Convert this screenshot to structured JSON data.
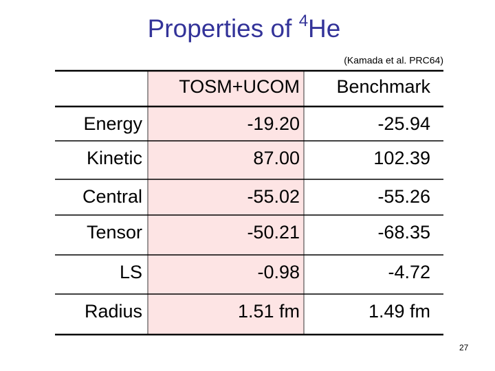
{
  "header": {
    "title": {
      "main": "Properties of ",
      "superscript": "4",
      "element": "He"
    },
    "citation": "(Kamada et al. PRC64)"
  },
  "table": {
    "columns": [
      "TOSM+UCOM",
      "Benchmark"
    ],
    "rows": [
      [
        "Energy",
        "-19.20",
        "-25.94"
      ],
      [
        "Kinetic",
        "87.00",
        "102.39"
      ],
      [
        "Central",
        "-55.02",
        "-55.26"
      ],
      [
        "Tensor",
        "-50.21",
        "-68.35"
      ],
      [
        "LS",
        "-0.98",
        "-4.72"
      ],
      [
        "Radius",
        "1.51 fm",
        "1.49 fm"
      ]
    ]
  },
  "footer": {
    "page_number": "27"
  }
}
